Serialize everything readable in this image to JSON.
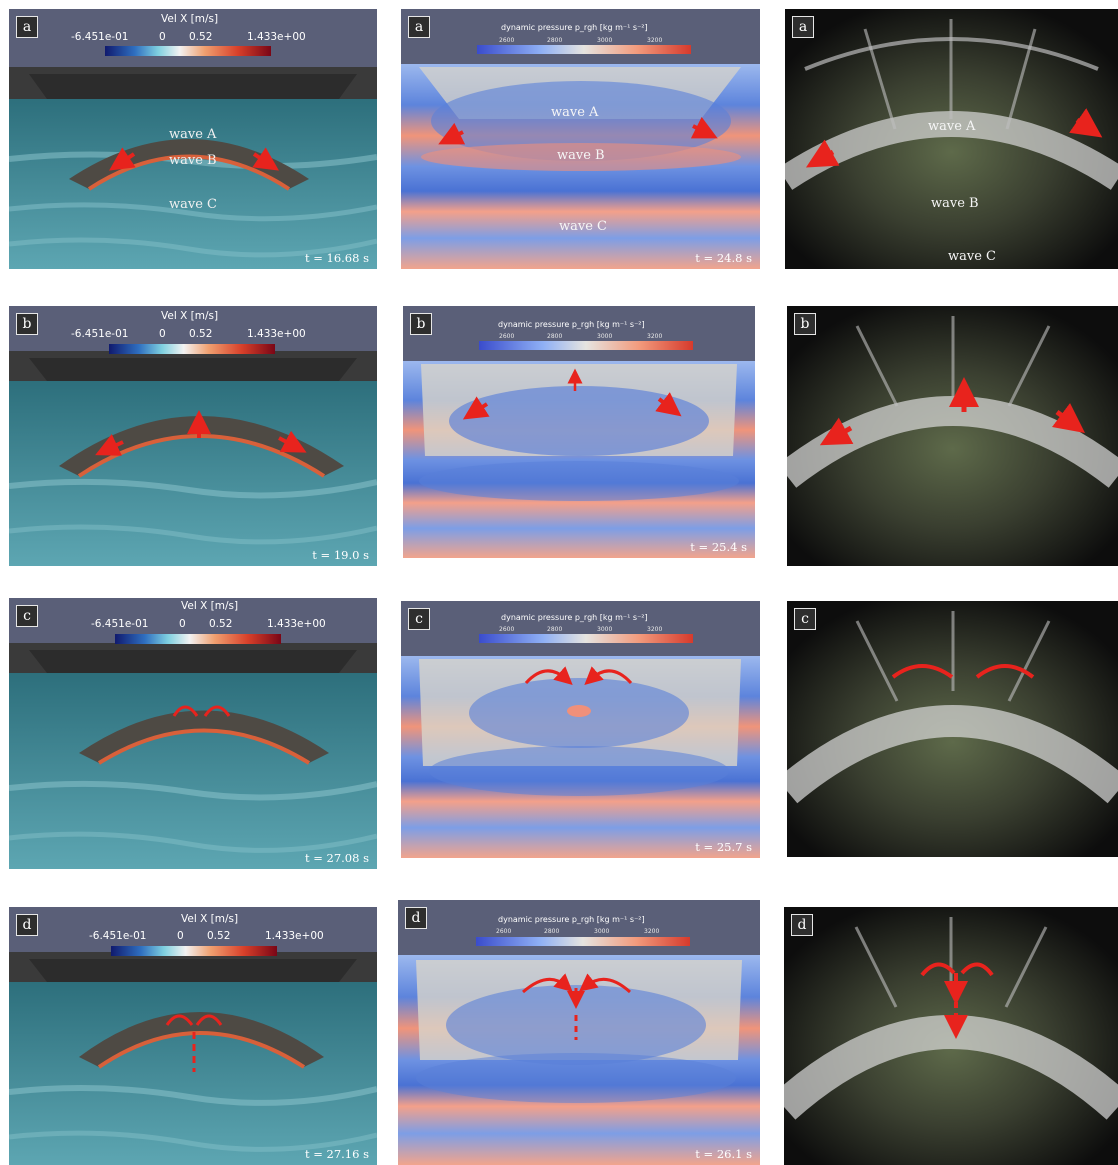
{
  "colorbar_velocity": {
    "title": "Vel X  [m/s]",
    "ticks": [
      "-6.451e-01",
      "0",
      "0.52",
      "1.433e+00"
    ]
  },
  "colorbar_pressure": {
    "title": "dynamic pressure p_rgh [kg m⁻¹ s⁻²]",
    "ticks": [
      "2600",
      "2800",
      "3000",
      "3200"
    ]
  },
  "rows": [
    {
      "label": "a",
      "velocity_time": "t = 16.68 s",
      "pressure_time": "t = 24.8 s",
      "velocity_waves": [
        "wave A",
        "wave B",
        "wave C"
      ],
      "pressure_waves": [
        "wave A",
        "wave B",
        "wave C"
      ],
      "photo_waves": [
        "wave A",
        "wave B",
        "wave C"
      ]
    },
    {
      "label": "b",
      "velocity_time": "t = 19.0 s",
      "pressure_time": "t = 25.4 s"
    },
    {
      "label": "c",
      "velocity_time": "t = 27.08 s",
      "pressure_time": "t = 25.7 s"
    },
    {
      "label": "d",
      "velocity_time": "t = 27.16 s",
      "pressure_time": "t = 26.1 s"
    }
  ],
  "colors": {
    "arrow": "#e8231d",
    "velocity_water": "#3f8f9c",
    "pressure_blue": "#4a78d6",
    "pressure_red": "#f08a72"
  }
}
